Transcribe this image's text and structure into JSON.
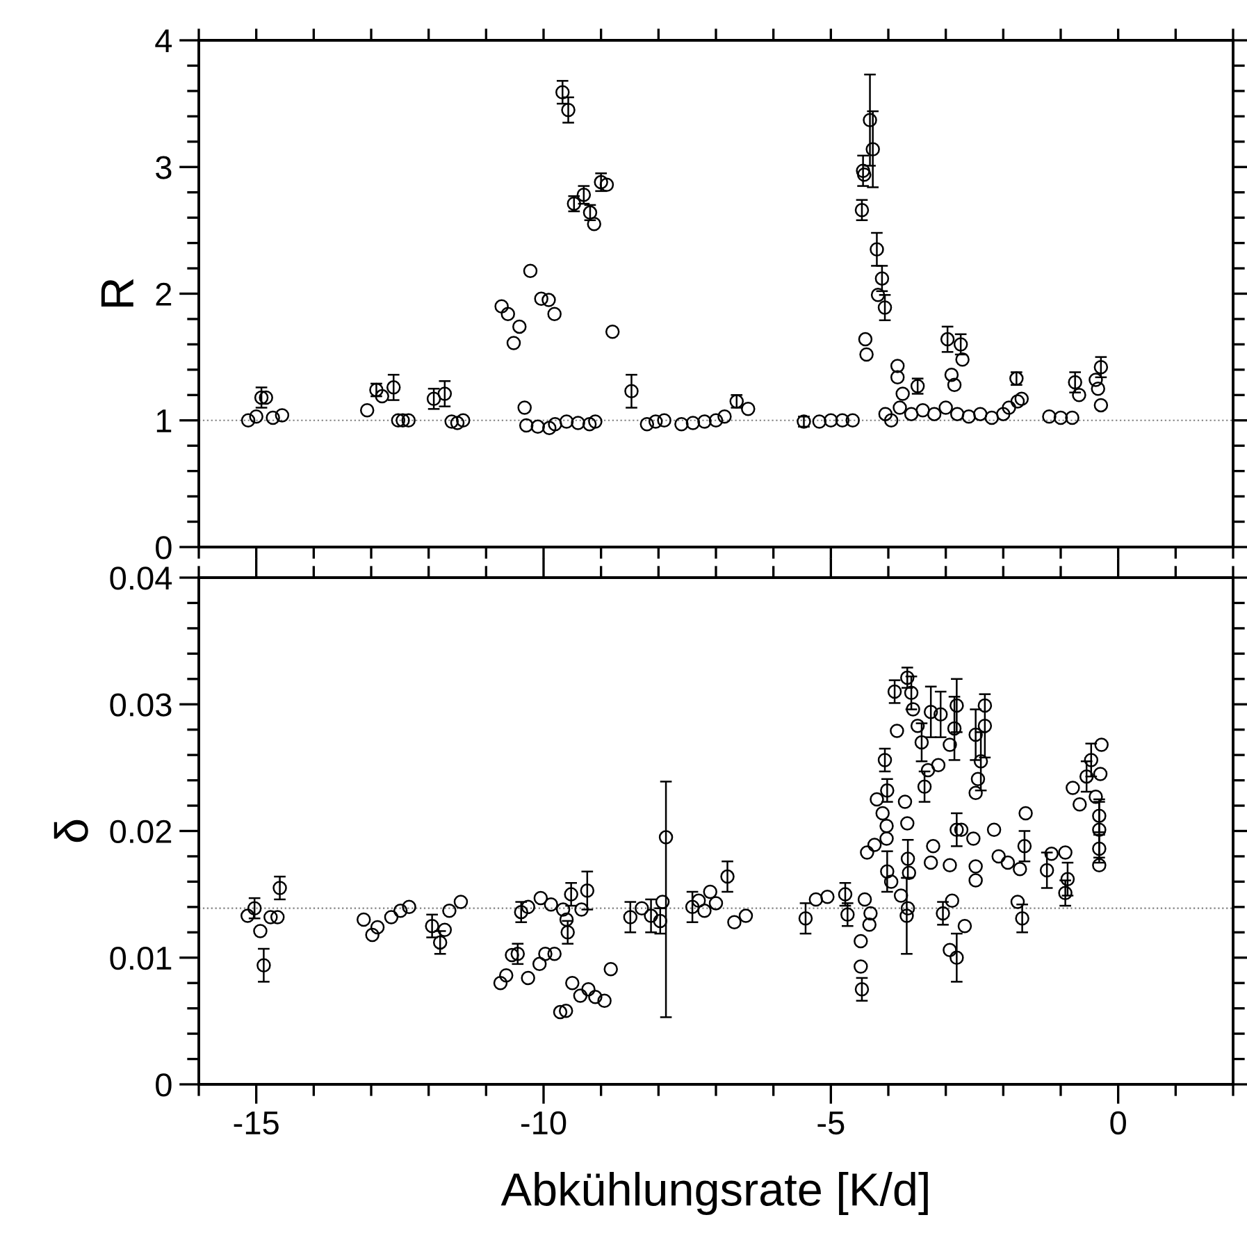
{
  "chart_data": [
    {
      "type": "scatter",
      "ylabel": "R",
      "marker": "circle",
      "tick_labels": "y",
      "xlim": [
        -16,
        2
      ],
      "xticks": [
        {
          "value": -16,
          "label": null
        },
        {
          "value": -15,
          "label": null
        },
        {
          "value": -14,
          "label": null
        },
        {
          "value": -13,
          "label": null
        },
        {
          "value": -12,
          "label": null
        },
        {
          "value": -11,
          "label": null
        },
        {
          "value": -10,
          "label": null
        },
        {
          "value": -9,
          "label": null
        },
        {
          "value": -8,
          "label": null
        },
        {
          "value": -7,
          "label": null
        },
        {
          "value": -6,
          "label": null
        },
        {
          "value": -5,
          "label": null
        },
        {
          "value": -4,
          "label": null
        },
        {
          "value": -3,
          "label": null
        },
        {
          "value": -2,
          "label": null
        },
        {
          "value": -1,
          "label": null
        },
        {
          "value": 0,
          "label": null
        },
        {
          "value": 1,
          "label": null
        },
        {
          "value": 2,
          "label": null
        }
      ],
      "ylim": [
        0,
        4
      ],
      "yticks": [
        0,
        {
          "value": 0.2,
          "label": null
        },
        {
          "value": 0.4,
          "label": null
        },
        {
          "value": 0.6,
          "label": null
        },
        {
          "value": 0.8,
          "label": null
        },
        1,
        {
          "value": 1.2,
          "label": null
        },
        {
          "value": 1.4,
          "label": null
        },
        {
          "value": 1.6,
          "label": null
        },
        {
          "value": 1.8,
          "label": null
        },
        2,
        {
          "value": 2.2,
          "label": null
        },
        {
          "value": 2.4,
          "label": null
        },
        {
          "value": 2.6,
          "label": null
        },
        {
          "value": 2.8,
          "label": null
        },
        3,
        {
          "value": 3.2,
          "label": null
        },
        {
          "value": 3.4,
          "label": null
        },
        {
          "value": 3.6,
          "label": null
        },
        {
          "value": 3.8,
          "label": null
        },
        4
      ],
      "ref_lines": [
        {
          "axis": "y",
          "value": 1,
          "label": null,
          "color": "#808080",
          "line_style": "dotted"
        }
      ],
      "series": [
        {
          "color": "#000000",
          "x": [
            -15.14,
            -14.91,
            -14.83,
            -14.71,
            -14.55,
            -15.0,
            -13.07,
            -12.91,
            -12.81,
            -12.61,
            -12.53,
            -12.35,
            -12.45,
            -11.91,
            -11.72,
            -11.6,
            -11.4,
            -11.5,
            -10.73,
            -10.62,
            -10.52,
            -10.42,
            -10.33,
            -10.23,
            -10.04,
            -9.91,
            -9.81,
            -9.67,
            -9.57,
            -9.47,
            -9.3,
            -9.19,
            -9.12,
            -9.0,
            -8.9,
            -8.8,
            -8.47,
            -10.3,
            -10.1,
            -9.9,
            -9.8,
            -9.6,
            -9.4,
            -9.2,
            -9.1,
            -8.2,
            -8.05,
            -7.9,
            -7.6,
            -7.4,
            -7.2,
            -7.0,
            -6.85,
            -6.64,
            -6.44,
            -5.47,
            -5.2,
            -5.0,
            -4.8,
            -4.62,
            -4.46,
            -4.44,
            -4.42,
            -4.4,
            -4.38,
            -4.32,
            -4.27,
            -4.2,
            -4.18,
            -4.11,
            -4.06,
            -4.05,
            -3.95,
            -3.84,
            -3.84,
            -3.75,
            -3.8,
            -3.6,
            -3.49,
            -3.4,
            -3.2,
            -3.0,
            -2.97,
            -2.9,
            -2.85,
            -2.8,
            -2.74,
            -2.71,
            -2.6,
            -2.4,
            -2.2,
            -2.0,
            -1.9,
            -1.77,
            -1.68,
            -1.75,
            -1.2,
            -1.0,
            -0.8,
            -0.75,
            -0.68,
            -0.39,
            -0.3,
            -0.3,
            -0.35
          ],
          "values": [
            1.0,
            1.18,
            1.18,
            1.02,
            1.04,
            1.03,
            1.08,
            1.24,
            1.19,
            1.26,
            1.0,
            1.0,
            1.0,
            1.17,
            1.21,
            0.99,
            1.0,
            0.98,
            1.9,
            1.84,
            1.61,
            1.74,
            1.1,
            2.18,
            1.96,
            1.95,
            1.84,
            3.59,
            3.45,
            2.71,
            2.78,
            2.64,
            2.55,
            2.88,
            2.86,
            1.7,
            1.23,
            0.96,
            0.95,
            0.94,
            0.97,
            0.99,
            0.98,
            0.97,
            0.99,
            0.97,
            0.99,
            1.0,
            0.97,
            0.98,
            0.99,
            1.0,
            1.03,
            1.15,
            1.09,
            0.99,
            0.99,
            1.0,
            1.0,
            1.0,
            2.66,
            2.97,
            2.94,
            1.64,
            1.52,
            3.37,
            3.14,
            2.35,
            1.99,
            2.12,
            1.89,
            1.05,
            1.0,
            1.43,
            1.34,
            1.21,
            1.1,
            1.05,
            1.27,
            1.08,
            1.05,
            1.1,
            1.64,
            1.36,
            1.28,
            1.05,
            1.6,
            1.48,
            1.03,
            1.05,
            1.02,
            1.05,
            1.1,
            1.33,
            1.17,
            1.15,
            1.03,
            1.02,
            1.02,
            1.3,
            1.2,
            1.32,
            1.42,
            1.12,
            1.25
          ],
          "errors": [
            null,
            0.08,
            null,
            null,
            null,
            null,
            null,
            0.05,
            null,
            0.1,
            null,
            null,
            null,
            0.08,
            0.1,
            null,
            null,
            null,
            null,
            null,
            null,
            null,
            null,
            null,
            null,
            null,
            null,
            0.09,
            0.1,
            0.06,
            0.07,
            0.06,
            null,
            0.07,
            null,
            null,
            0.13,
            null,
            null,
            null,
            null,
            null,
            null,
            null,
            null,
            null,
            null,
            null,
            null,
            null,
            null,
            null,
            null,
            0.05,
            null,
            0.04,
            null,
            null,
            null,
            null,
            0.08,
            0.12,
            null,
            null,
            null,
            0.36,
            0.3,
            0.13,
            null,
            0.1,
            0.1,
            null,
            null,
            null,
            null,
            null,
            null,
            null,
            0.06,
            null,
            null,
            null,
            0.1,
            null,
            null,
            null,
            0.08,
            null,
            null,
            null,
            null,
            null,
            null,
            0.05,
            null,
            null,
            null,
            null,
            null,
            0.08,
            null,
            null,
            0.08,
            null,
            null
          ]
        }
      ]
    },
    {
      "type": "scatter",
      "ylabel": "δ",
      "xlabel": "Abkühlungsrate [K/d]",
      "marker": "circle",
      "xlim": [
        -16,
        2
      ],
      "xticks": [
        {
          "value": -16,
          "label": null
        },
        -15,
        {
          "value": -14,
          "label": null
        },
        {
          "value": -13,
          "label": null
        },
        {
          "value": -12,
          "label": null
        },
        {
          "value": -11,
          "label": null
        },
        -10,
        {
          "value": -9,
          "label": null
        },
        {
          "value": -8,
          "label": null
        },
        {
          "value": -7,
          "label": null
        },
        {
          "value": -6,
          "label": null
        },
        -5,
        {
          "value": -4,
          "label": null
        },
        {
          "value": -3,
          "label": null
        },
        {
          "value": -2,
          "label": null
        },
        {
          "value": -1,
          "label": null
        },
        0,
        {
          "value": 1,
          "label": null
        },
        {
          "value": 2,
          "label": null
        }
      ],
      "ylim": [
        0,
        0.04
      ],
      "yticks": [
        0,
        {
          "value": 0.002,
          "label": null
        },
        {
          "value": 0.004,
          "label": null
        },
        {
          "value": 0.006,
          "label": null
        },
        {
          "value": 0.008,
          "label": null
        },
        0.01,
        {
          "value": 0.012,
          "label": null
        },
        {
          "value": 0.014,
          "label": null
        },
        {
          "value": 0.016,
          "label": null
        },
        {
          "value": 0.018,
          "label": null
        },
        0.02,
        {
          "value": 0.022,
          "label": null
        },
        {
          "value": 0.024,
          "label": null
        },
        {
          "value": 0.026,
          "label": null
        },
        {
          "value": 0.028,
          "label": null
        },
        0.03,
        {
          "value": 0.032,
          "label": null
        },
        {
          "value": 0.034,
          "label": null
        },
        {
          "value": 0.036,
          "label": null
        },
        {
          "value": 0.038,
          "label": null
        },
        0.04
      ],
      "ref_lines": [
        {
          "axis": "y",
          "value": 0.0139,
          "label": null,
          "color": "#808080",
          "line_style": "dotted"
        }
      ],
      "series": [
        {
          "color": "#000000",
          "x": [
            -15.03,
            -15.15,
            -14.93,
            -14.87,
            -14.59,
            -14.75,
            -14.63,
            -13.13,
            -12.98,
            -12.89,
            -12.65,
            -12.49,
            -12.34,
            -11.94,
            -11.8,
            -11.72,
            -11.64,
            -11.44,
            -10.75,
            -10.65,
            -10.55,
            -10.45,
            -10.27,
            -10.07,
            -9.97,
            -9.81,
            -9.71,
            -9.61,
            -9.5,
            -9.36,
            -9.22,
            -9.1,
            -8.94,
            -8.83,
            -10.39,
            -10.27,
            -10.05,
            -9.87,
            -9.66,
            -9.6,
            -9.58,
            -9.52,
            -9.24,
            -9.34,
            -8.49,
            -8.29,
            -8.13,
            -7.97,
            -7.93,
            -7.87,
            -7.41,
            -7.3,
            -7.2,
            -7.1,
            -7.0,
            -6.8,
            -6.68,
            -6.48,
            -5.44,
            -5.26,
            -5.06,
            -4.75,
            -4.71,
            -4.48,
            -4.48,
            -4.46,
            -4.41,
            -4.31,
            -4.33,
            -4.37,
            -4.24,
            -4.06,
            -4.02,
            -4.2,
            -4.1,
            -4.03,
            -4.03,
            -4.02,
            -3.95,
            -3.85,
            -3.89,
            -3.67,
            -3.6,
            -3.57,
            -3.49,
            -3.71,
            -3.67,
            -3.66,
            -3.64,
            -3.66,
            -3.68,
            -3.78,
            -3.42,
            -3.31,
            -3.37,
            -3.26,
            -3.09,
            -3.13,
            -2.93,
            -2.81,
            -2.85,
            -3.26,
            -3.22,
            -3.05,
            -2.93,
            -2.81,
            -2.67,
            -2.89,
            -2.81,
            -2.93,
            -2.48,
            -2.32,
            -2.32,
            -2.39,
            -2.44,
            -2.48,
            -2.73,
            -2.52,
            -2.48,
            -2.48,
            -2.16,
            -2.08,
            -1.92,
            -1.71,
            -1.63,
            -1.61,
            -1.75,
            -1.67,
            -1.24,
            -1.16,
            -0.92,
            -0.88,
            -0.92,
            -0.79,
            -0.67,
            -0.55,
            -0.47,
            -0.29,
            -0.31,
            -0.39,
            -0.33,
            -0.33,
            -0.33,
            -0.33
          ],
          "values": [
            0.0139,
            0.0133,
            0.0121,
            0.0094,
            0.0155,
            0.0132,
            0.0132,
            0.013,
            0.0118,
            0.0124,
            0.0132,
            0.0137,
            0.014,
            0.0125,
            0.0112,
            0.0122,
            0.0137,
            0.0144,
            0.008,
            0.0086,
            0.0102,
            0.0103,
            0.0084,
            0.0095,
            0.0103,
            0.0103,
            0.0057,
            0.0058,
            0.008,
            0.007,
            0.0075,
            0.0069,
            0.0066,
            0.0091,
            0.0136,
            0.014,
            0.0147,
            0.0142,
            0.0138,
            0.013,
            0.012,
            0.015,
            0.0153,
            0.0138,
            0.0132,
            0.0139,
            0.0133,
            0.0129,
            0.0144,
            0.0195,
            0.014,
            0.0145,
            0.0137,
            0.0152,
            0.0143,
            0.0164,
            0.0128,
            0.0133,
            0.0131,
            0.0146,
            0.0148,
            0.015,
            0.0134,
            0.0113,
            0.0093,
            0.0075,
            0.0146,
            0.0135,
            0.0126,
            0.0183,
            0.0189,
            0.0256,
            0.0232,
            0.0225,
            0.0214,
            0.0194,
            0.0204,
            0.0168,
            0.016,
            0.0279,
            0.031,
            0.0321,
            0.0309,
            0.0296,
            0.0283,
            0.0223,
            0.0206,
            0.0178,
            0.0167,
            0.0139,
            0.0133,
            0.0149,
            0.027,
            0.0248,
            0.0235,
            0.0294,
            0.0292,
            0.0252,
            0.0268,
            0.0299,
            0.0281,
            0.0175,
            0.0188,
            0.0135,
            0.0106,
            0.01,
            0.0125,
            0.0145,
            0.0201,
            0.0173,
            0.0276,
            0.0299,
            0.0283,
            0.0255,
            0.0241,
            0.023,
            0.0201,
            0.0194,
            0.0172,
            0.0161,
            0.0201,
            0.018,
            0.0175,
            0.017,
            0.0188,
            0.0214,
            0.0144,
            0.0131,
            0.0169,
            0.0182,
            0.0183,
            0.0162,
            0.0151,
            0.0234,
            0.0221,
            0.0243,
            0.0256,
            0.0268,
            0.0245,
            0.0227,
            0.0212,
            0.0201,
            0.0186,
            0.0173
          ],
          "errors": [
            0.0008,
            null,
            null,
            0.0013,
            0.0009,
            null,
            null,
            null,
            null,
            null,
            null,
            null,
            null,
            0.0009,
            0.0009,
            null,
            null,
            null,
            null,
            null,
            null,
            0.0008,
            null,
            null,
            null,
            null,
            null,
            null,
            null,
            null,
            null,
            null,
            null,
            null,
            0.0008,
            null,
            null,
            null,
            null,
            null,
            0.0009,
            0.0009,
            0.0015,
            null,
            0.0012,
            null,
            0.0013,
            0.001,
            null,
            [
              0.0053,
              0.0239
            ],
            0.0012,
            null,
            null,
            null,
            null,
            0.0012,
            null,
            null,
            0.0012,
            null,
            null,
            0.0009,
            0.0009,
            null,
            null,
            0.0009,
            null,
            null,
            null,
            null,
            null,
            0.0009,
            0.0009,
            null,
            null,
            null,
            null,
            0.0016,
            null,
            null,
            0.0009,
            0.0008,
            0.0013,
            null,
            null,
            null,
            null,
            0.0015,
            null,
            null,
            0.003,
            null,
            0.0015,
            null,
            0.0012,
            0.002,
            0.0018,
            null,
            null,
            0.0021,
            0.0025,
            null,
            null,
            0.0009,
            null,
            0.0019,
            null,
            null,
            0.0013,
            null,
            0.002,
            null,
            0.0025,
            0.0023,
            null,
            null,
            null,
            null,
            null,
            null,
            null,
            null,
            null,
            null,
            0.0012,
            null,
            null,
            0.0011,
            0.0014,
            null,
            null,
            0.0013,
            0.001,
            null,
            null,
            0.0012,
            0.0013,
            null,
            null,
            null,
            0.0013,
            0.0022,
            0.0011,
            null
          ]
        }
      ]
    }
  ]
}
